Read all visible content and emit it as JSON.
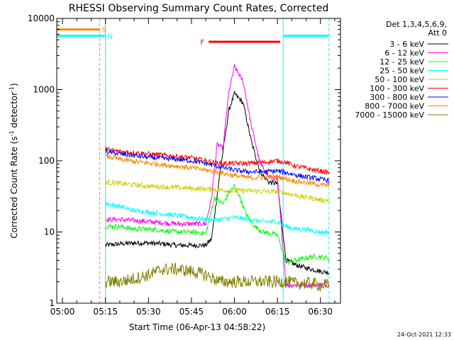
{
  "chart_data": {
    "type": "line",
    "title": "RHESSI Observing Summary Count Rates, Corrected",
    "xlabel": "Start Time (06-Apr-13 04:58:22)",
    "ylabel": "Corrected Count Rate (s⁻¹ detector⁻¹)",
    "ylabel_main": "Corrected Count Rate (s",
    "ylabel_sup1": "-1",
    "ylabel_mid": " detector",
    "ylabel_sup2": "-1",
    "ylabel_end": ")",
    "y_scale": "log",
    "ylim": [
      1,
      10000
    ],
    "xlim": [
      "04:58",
      "06:37"
    ],
    "x_tick_labels": [
      "05:00",
      "05:15",
      "05:30",
      "05:45",
      "06:00",
      "06:15",
      "06:30"
    ],
    "y_tick_labels": [
      "1",
      "10",
      "100",
      "1000",
      "10000"
    ],
    "legend_header_1": "Det 1,3,4,5,6,9,",
    "legend_header_2": "Att 0",
    "legend_placement": "right",
    "series": [
      {
        "name": "3 - 6 keV",
        "color": "#000000",
        "x": [
          "05:15",
          "05:20",
          "05:25",
          "05:30",
          "05:35",
          "05:40",
          "05:45",
          "05:50",
          "05:52",
          "05:55",
          "05:58",
          "06:00",
          "06:03",
          "06:06",
          "06:09",
          "06:12",
          "06:15",
          "06:18",
          "06:21",
          "06:24",
          "06:27",
          "06:30",
          "06:33"
        ],
        "y": [
          6.5,
          6.8,
          7.0,
          7.0,
          6.8,
          6.5,
          6.5,
          6.5,
          8,
          70,
          500,
          880,
          650,
          180,
          70,
          50,
          48,
          4,
          3.5,
          3.2,
          3.0,
          2.8,
          2.7
        ]
      },
      {
        "name": "6 - 12 keV",
        "color": "#ff00ff",
        "x": [
          "05:15",
          "05:20",
          "05:25",
          "05:30",
          "05:35",
          "05:40",
          "05:45",
          "05:50",
          "05:52",
          "05:54",
          "05:56",
          "05:58",
          "06:00",
          "06:03",
          "06:06",
          "06:09",
          "06:12",
          "06:15",
          "06:18",
          "06:21",
          "06:24",
          "06:27",
          "06:30",
          "06:33"
        ],
        "y": [
          15,
          15,
          14.5,
          14,
          13.5,
          13,
          13,
          13,
          30,
          170,
          150,
          900,
          2100,
          1300,
          300,
          90,
          60,
          55,
          1.8,
          1.8,
          1.8,
          1.8,
          1.8,
          1.8
        ]
      },
      {
        "name": "12 - 25 keV",
        "color": "#00ff00",
        "x": [
          "05:15",
          "05:20",
          "05:25",
          "05:30",
          "05:35",
          "05:40",
          "05:45",
          "05:50",
          "05:53",
          "05:56",
          "05:58",
          "06:00",
          "06:02",
          "06:04",
          "06:07",
          "06:10",
          "06:13",
          "06:15",
          "06:18",
          "06:21",
          "06:24",
          "06:27",
          "06:30",
          "06:33"
        ],
        "y": [
          12,
          12,
          11,
          11,
          10.5,
          10,
          10,
          9.5,
          30,
          25,
          35,
          45,
          30,
          18,
          12,
          10,
          9.5,
          9,
          3.8,
          4,
          4.2,
          4.5,
          4.5,
          4.2
        ]
      },
      {
        "name": "25 - 50 keV",
        "color": "#00ffff",
        "x": [
          "05:15",
          "05:20",
          "05:25",
          "05:30",
          "05:35",
          "05:40",
          "05:45",
          "05:50",
          "05:55",
          "06:00",
          "06:05",
          "06:10",
          "06:15",
          "06:18",
          "06:21",
          "06:24",
          "06:27",
          "06:30",
          "06:33"
        ],
        "y": [
          25,
          23,
          20,
          19,
          18,
          17,
          16,
          15,
          15,
          16,
          15,
          14,
          14,
          12,
          11,
          11,
          10.5,
          10,
          10
        ]
      },
      {
        "name": "50 - 100 keV",
        "color": "#cccc00",
        "x": [
          "05:15",
          "05:20",
          "05:25",
          "05:30",
          "05:35",
          "05:40",
          "05:45",
          "05:50",
          "05:55",
          "06:00",
          "06:05",
          "06:10",
          "06:15",
          "06:18",
          "06:21",
          "06:24",
          "06:27",
          "06:30",
          "06:33"
        ],
        "y": [
          50,
          48,
          46,
          44,
          43,
          42,
          41,
          40,
          39,
          38,
          38,
          37,
          37,
          35,
          33,
          31,
          30,
          28,
          28
        ]
      },
      {
        "name": "100 - 300 keV",
        "color": "#ff0000",
        "x": [
          "05:15",
          "05:20",
          "05:25",
          "05:30",
          "05:35",
          "05:40",
          "05:45",
          "05:50",
          "05:55",
          "06:00",
          "06:05",
          "06:10",
          "06:15",
          "06:18",
          "06:21",
          "06:24",
          "06:27",
          "06:30",
          "06:33"
        ],
        "y": [
          145,
          135,
          130,
          125,
          120,
          115,
          110,
          100,
          92,
          92,
          92,
          95,
          100,
          95,
          85,
          80,
          75,
          72,
          68
        ]
      },
      {
        "name": "300 - 800 keV",
        "color": "#0000ff",
        "x": [
          "05:15",
          "05:20",
          "05:25",
          "05:30",
          "05:35",
          "05:40",
          "05:45",
          "05:50",
          "05:55",
          "06:00",
          "06:05",
          "06:10",
          "06:15",
          "06:18",
          "06:21",
          "06:24",
          "06:27",
          "06:30",
          "06:33"
        ],
        "y": [
          135,
          125,
          118,
          112,
          108,
          105,
          100,
          92,
          82,
          74,
          70,
          70,
          72,
          68,
          64,
          60,
          58,
          55,
          53
        ]
      },
      {
        "name": "800 - 7000 keV",
        "color": "#ff8800",
        "x": [
          "05:15",
          "05:20",
          "05:25",
          "05:30",
          "05:35",
          "05:40",
          "05:45",
          "05:50",
          "05:55",
          "06:00",
          "06:05",
          "06:10",
          "06:15",
          "06:18",
          "06:21",
          "06:24",
          "06:27",
          "06:30",
          "06:33"
        ],
        "y": [
          115,
          105,
          98,
          93,
          88,
          84,
          80,
          74,
          68,
          62,
          58,
          58,
          60,
          56,
          52,
          50,
          48,
          46,
          45
        ]
      },
      {
        "name": "7000 - 15000 keV",
        "color": "#808000",
        "x": [
          "05:15",
          "05:20",
          "05:25",
          "05:30",
          "05:35",
          "05:40",
          "05:45",
          "05:50",
          "05:55",
          "06:00",
          "06:05",
          "06:10",
          "06:15",
          "06:18",
          "06:21",
          "06:24",
          "06:27",
          "06:30",
          "06:33"
        ],
        "y": [
          2,
          2,
          2.2,
          2.5,
          3,
          3,
          2.8,
          2.5,
          2,
          2,
          2,
          2,
          2,
          2,
          1.9,
          1.9,
          1.9,
          1.8,
          1.8
        ]
      }
    ],
    "flag_bars": [
      {
        "label": "S",
        "color": "#ff8800",
        "x": [
          "04:58",
          "05:13"
        ],
        "y": 7000
      },
      {
        "label": "N",
        "color": "#00ffff",
        "x": [
          "04:58",
          "05:15"
        ],
        "y": 5700
      },
      {
        "label": "",
        "color": "#00ffff",
        "x": [
          "06:17",
          "06:33"
        ],
        "y": 5700
      },
      {
        "label": "F",
        "color": "#ff0000",
        "x": [
          "05:51",
          "06:16"
        ],
        "y": 4700
      }
    ],
    "vertical_lines": [
      {
        "style": "dashed",
        "color": "#ff8800",
        "x": "05:13"
      },
      {
        "style": "dashed",
        "color": "#00ffff",
        "x": "05:15"
      },
      {
        "style": "solid",
        "color": "#00ffff",
        "x": "05:15"
      },
      {
        "style": "solid",
        "color": "#00ffff",
        "x": "06:17"
      },
      {
        "style": "dashed",
        "color": "#00ffff",
        "x": "06:33"
      },
      {
        "style": "solid",
        "color": "#00ffff",
        "x": "04:58"
      }
    ],
    "timestamp": "24-Oct-2021 12:33"
  }
}
